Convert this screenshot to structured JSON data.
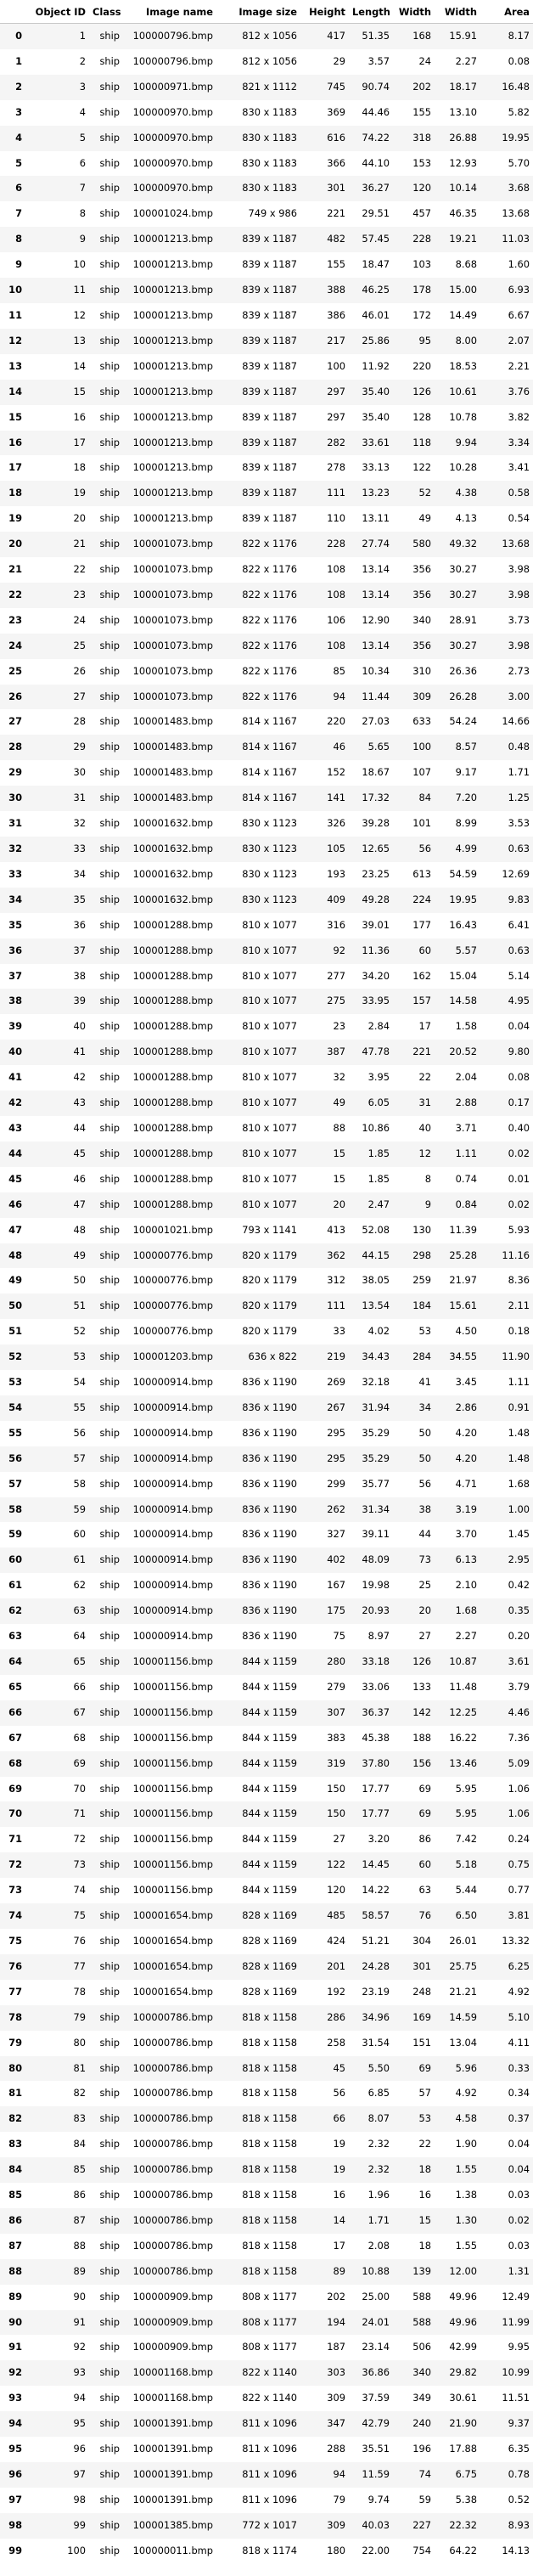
{
  "columns": [
    "",
    "Object ID",
    "Class",
    "Image name",
    "Image size",
    "Height",
    "Length",
    "Width",
    "Width",
    "Area"
  ],
  "rows": [
    [
      "0",
      "1",
      "ship",
      "100000796.bmp",
      "812 x 1056",
      "417",
      "51.35",
      "168",
      "15.91",
      "8.17"
    ],
    [
      "1",
      "2",
      "ship",
      "100000796.bmp",
      "812 x 1056",
      "29",
      "3.57",
      "24",
      "2.27",
      "0.08"
    ],
    [
      "2",
      "3",
      "ship",
      "100000971.bmp",
      "821 x 1112",
      "745",
      "90.74",
      "202",
      "18.17",
      "16.48"
    ],
    [
      "3",
      "4",
      "ship",
      "100000970.bmp",
      "830 x 1183",
      "369",
      "44.46",
      "155",
      "13.10",
      "5.82"
    ],
    [
      "4",
      "5",
      "ship",
      "100000970.bmp",
      "830 x 1183",
      "616",
      "74.22",
      "318",
      "26.88",
      "19.95"
    ],
    [
      "5",
      "6",
      "ship",
      "100000970.bmp",
      "830 x 1183",
      "366",
      "44.10",
      "153",
      "12.93",
      "5.70"
    ],
    [
      "6",
      "7",
      "ship",
      "100000970.bmp",
      "830 x 1183",
      "301",
      "36.27",
      "120",
      "10.14",
      "3.68"
    ],
    [
      "7",
      "8",
      "ship",
      "100001024.bmp",
      "749 x 986",
      "221",
      "29.51",
      "457",
      "46.35",
      "13.68"
    ],
    [
      "8",
      "9",
      "ship",
      "100001213.bmp",
      "839 x 1187",
      "482",
      "57.45",
      "228",
      "19.21",
      "11.03"
    ],
    [
      "9",
      "10",
      "ship",
      "100001213.bmp",
      "839 x 1187",
      "155",
      "18.47",
      "103",
      "8.68",
      "1.60"
    ],
    [
      "10",
      "11",
      "ship",
      "100001213.bmp",
      "839 x 1187",
      "388",
      "46.25",
      "178",
      "15.00",
      "6.93"
    ],
    [
      "11",
      "12",
      "ship",
      "100001213.bmp",
      "839 x 1187",
      "386",
      "46.01",
      "172",
      "14.49",
      "6.67"
    ],
    [
      "12",
      "13",
      "ship",
      "100001213.bmp",
      "839 x 1187",
      "217",
      "25.86",
      "95",
      "8.00",
      "2.07"
    ],
    [
      "13",
      "14",
      "ship",
      "100001213.bmp",
      "839 x 1187",
      "100",
      "11.92",
      "220",
      "18.53",
      "2.21"
    ],
    [
      "14",
      "15",
      "ship",
      "100001213.bmp",
      "839 x 1187",
      "297",
      "35.40",
      "126",
      "10.61",
      "3.76"
    ],
    [
      "15",
      "16",
      "ship",
      "100001213.bmp",
      "839 x 1187",
      "297",
      "35.40",
      "128",
      "10.78",
      "3.82"
    ],
    [
      "16",
      "17",
      "ship",
      "100001213.bmp",
      "839 x 1187",
      "282",
      "33.61",
      "118",
      "9.94",
      "3.34"
    ],
    [
      "17",
      "18",
      "ship",
      "100001213.bmp",
      "839 x 1187",
      "278",
      "33.13",
      "122",
      "10.28",
      "3.41"
    ],
    [
      "18",
      "19",
      "ship",
      "100001213.bmp",
      "839 x 1187",
      "111",
      "13.23",
      "52",
      "4.38",
      "0.58"
    ],
    [
      "19",
      "20",
      "ship",
      "100001213.bmp",
      "839 x 1187",
      "110",
      "13.11",
      "49",
      "4.13",
      "0.54"
    ],
    [
      "20",
      "21",
      "ship",
      "100001073.bmp",
      "822 x 1176",
      "228",
      "27.74",
      "580",
      "49.32",
      "13.68"
    ],
    [
      "21",
      "22",
      "ship",
      "100001073.bmp",
      "822 x 1176",
      "108",
      "13.14",
      "356",
      "30.27",
      "3.98"
    ],
    [
      "22",
      "23",
      "ship",
      "100001073.bmp",
      "822 x 1176",
      "108",
      "13.14",
      "356",
      "30.27",
      "3.98"
    ],
    [
      "23",
      "24",
      "ship",
      "100001073.bmp",
      "822 x 1176",
      "106",
      "12.90",
      "340",
      "28.91",
      "3.73"
    ],
    [
      "24",
      "25",
      "ship",
      "100001073.bmp",
      "822 x 1176",
      "108",
      "13.14",
      "356",
      "30.27",
      "3.98"
    ],
    [
      "25",
      "26",
      "ship",
      "100001073.bmp",
      "822 x 1176",
      "85",
      "10.34",
      "310",
      "26.36",
      "2.73"
    ],
    [
      "26",
      "27",
      "ship",
      "100001073.bmp",
      "822 x 1176",
      "94",
      "11.44",
      "309",
      "26.28",
      "3.00"
    ],
    [
      "27",
      "28",
      "ship",
      "100001483.bmp",
      "814 x 1167",
      "220",
      "27.03",
      "633",
      "54.24",
      "14.66"
    ],
    [
      "28",
      "29",
      "ship",
      "100001483.bmp",
      "814 x 1167",
      "46",
      "5.65",
      "100",
      "8.57",
      "0.48"
    ],
    [
      "29",
      "30",
      "ship",
      "100001483.bmp",
      "814 x 1167",
      "152",
      "18.67",
      "107",
      "9.17",
      "1.71"
    ],
    [
      "30",
      "31",
      "ship",
      "100001483.bmp",
      "814 x 1167",
      "141",
      "17.32",
      "84",
      "7.20",
      "1.25"
    ],
    [
      "31",
      "32",
      "ship",
      "100001632.bmp",
      "830 x 1123",
      "326",
      "39.28",
      "101",
      "8.99",
      "3.53"
    ],
    [
      "32",
      "33",
      "ship",
      "100001632.bmp",
      "830 x 1123",
      "105",
      "12.65",
      "56",
      "4.99",
      "0.63"
    ],
    [
      "33",
      "34",
      "ship",
      "100001632.bmp",
      "830 x 1123",
      "193",
      "23.25",
      "613",
      "54.59",
      "12.69"
    ],
    [
      "34",
      "35",
      "ship",
      "100001632.bmp",
      "830 x 1123",
      "409",
      "49.28",
      "224",
      "19.95",
      "9.83"
    ],
    [
      "35",
      "36",
      "ship",
      "100001288.bmp",
      "810 x 1077",
      "316",
      "39.01",
      "177",
      "16.43",
      "6.41"
    ],
    [
      "36",
      "37",
      "ship",
      "100001288.bmp",
      "810 x 1077",
      "92",
      "11.36",
      "60",
      "5.57",
      "0.63"
    ],
    [
      "37",
      "38",
      "ship",
      "100001288.bmp",
      "810 x 1077",
      "277",
      "34.20",
      "162",
      "15.04",
      "5.14"
    ],
    [
      "38",
      "39",
      "ship",
      "100001288.bmp",
      "810 x 1077",
      "275",
      "33.95",
      "157",
      "14.58",
      "4.95"
    ],
    [
      "39",
      "40",
      "ship",
      "100001288.bmp",
      "810 x 1077",
      "23",
      "2.84",
      "17",
      "1.58",
      "0.04"
    ],
    [
      "40",
      "41",
      "ship",
      "100001288.bmp",
      "810 x 1077",
      "387",
      "47.78",
      "221",
      "20.52",
      "9.80"
    ],
    [
      "41",
      "42",
      "ship",
      "100001288.bmp",
      "810 x 1077",
      "32",
      "3.95",
      "22",
      "2.04",
      "0.08"
    ],
    [
      "42",
      "43",
      "ship",
      "100001288.bmp",
      "810 x 1077",
      "49",
      "6.05",
      "31",
      "2.88",
      "0.17"
    ],
    [
      "43",
      "44",
      "ship",
      "100001288.bmp",
      "810 x 1077",
      "88",
      "10.86",
      "40",
      "3.71",
      "0.40"
    ],
    [
      "44",
      "45",
      "ship",
      "100001288.bmp",
      "810 x 1077",
      "15",
      "1.85",
      "12",
      "1.11",
      "0.02"
    ],
    [
      "45",
      "46",
      "ship",
      "100001288.bmp",
      "810 x 1077",
      "15",
      "1.85",
      "8",
      "0.74",
      "0.01"
    ],
    [
      "46",
      "47",
      "ship",
      "100001288.bmp",
      "810 x 1077",
      "20",
      "2.47",
      "9",
      "0.84",
      "0.02"
    ],
    [
      "47",
      "48",
      "ship",
      "100001021.bmp",
      "793 x 1141",
      "413",
      "52.08",
      "130",
      "11.39",
      "5.93"
    ],
    [
      "48",
      "49",
      "ship",
      "100000776.bmp",
      "820 x 1179",
      "362",
      "44.15",
      "298",
      "25.28",
      "11.16"
    ],
    [
      "49",
      "50",
      "ship",
      "100000776.bmp",
      "820 x 1179",
      "312",
      "38.05",
      "259",
      "21.97",
      "8.36"
    ],
    [
      "50",
      "51",
      "ship",
      "100000776.bmp",
      "820 x 1179",
      "111",
      "13.54",
      "184",
      "15.61",
      "2.11"
    ],
    [
      "51",
      "52",
      "ship",
      "100000776.bmp",
      "820 x 1179",
      "33",
      "4.02",
      "53",
      "4.50",
      "0.18"
    ],
    [
      "52",
      "53",
      "ship",
      "100001203.bmp",
      "636 x 822",
      "219",
      "34.43",
      "284",
      "34.55",
      "11.90"
    ],
    [
      "53",
      "54",
      "ship",
      "100000914.bmp",
      "836 x 1190",
      "269",
      "32.18",
      "41",
      "3.45",
      "1.11"
    ],
    [
      "54",
      "55",
      "ship",
      "100000914.bmp",
      "836 x 1190",
      "267",
      "31.94",
      "34",
      "2.86",
      "0.91"
    ],
    [
      "55",
      "56",
      "ship",
      "100000914.bmp",
      "836 x 1190",
      "295",
      "35.29",
      "50",
      "4.20",
      "1.48"
    ],
    [
      "56",
      "57",
      "ship",
      "100000914.bmp",
      "836 x 1190",
      "295",
      "35.29",
      "50",
      "4.20",
      "1.48"
    ],
    [
      "57",
      "58",
      "ship",
      "100000914.bmp",
      "836 x 1190",
      "299",
      "35.77",
      "56",
      "4.71",
      "1.68"
    ],
    [
      "58",
      "59",
      "ship",
      "100000914.bmp",
      "836 x 1190",
      "262",
      "31.34",
      "38",
      "3.19",
      "1.00"
    ],
    [
      "59",
      "60",
      "ship",
      "100000914.bmp",
      "836 x 1190",
      "327",
      "39.11",
      "44",
      "3.70",
      "1.45"
    ],
    [
      "60",
      "61",
      "ship",
      "100000914.bmp",
      "836 x 1190",
      "402",
      "48.09",
      "73",
      "6.13",
      "2.95"
    ],
    [
      "61",
      "62",
      "ship",
      "100000914.bmp",
      "836 x 1190",
      "167",
      "19.98",
      "25",
      "2.10",
      "0.42"
    ],
    [
      "62",
      "63",
      "ship",
      "100000914.bmp",
      "836 x 1190",
      "175",
      "20.93",
      "20",
      "1.68",
      "0.35"
    ],
    [
      "63",
      "64",
      "ship",
      "100000914.bmp",
      "836 x 1190",
      "75",
      "8.97",
      "27",
      "2.27",
      "0.20"
    ],
    [
      "64",
      "65",
      "ship",
      "100001156.bmp",
      "844 x 1159",
      "280",
      "33.18",
      "126",
      "10.87",
      "3.61"
    ],
    [
      "65",
      "66",
      "ship",
      "100001156.bmp",
      "844 x 1159",
      "279",
      "33.06",
      "133",
      "11.48",
      "3.79"
    ],
    [
      "66",
      "67",
      "ship",
      "100001156.bmp",
      "844 x 1159",
      "307",
      "36.37",
      "142",
      "12.25",
      "4.46"
    ],
    [
      "67",
      "68",
      "ship",
      "100001156.bmp",
      "844 x 1159",
      "383",
      "45.38",
      "188",
      "16.22",
      "7.36"
    ],
    [
      "68",
      "69",
      "ship",
      "100001156.bmp",
      "844 x 1159",
      "319",
      "37.80",
      "156",
      "13.46",
      "5.09"
    ],
    [
      "69",
      "70",
      "ship",
      "100001156.bmp",
      "844 x 1159",
      "150",
      "17.77",
      "69",
      "5.95",
      "1.06"
    ],
    [
      "70",
      "71",
      "ship",
      "100001156.bmp",
      "844 x 1159",
      "150",
      "17.77",
      "69",
      "5.95",
      "1.06"
    ],
    [
      "71",
      "72",
      "ship",
      "100001156.bmp",
      "844 x 1159",
      "27",
      "3.20",
      "86",
      "7.42",
      "0.24"
    ],
    [
      "72",
      "73",
      "ship",
      "100001156.bmp",
      "844 x 1159",
      "122",
      "14.45",
      "60",
      "5.18",
      "0.75"
    ],
    [
      "73",
      "74",
      "ship",
      "100001156.bmp",
      "844 x 1159",
      "120",
      "14.22",
      "63",
      "5.44",
      "0.77"
    ],
    [
      "74",
      "75",
      "ship",
      "100001654.bmp",
      "828 x 1169",
      "485",
      "58.57",
      "76",
      "6.50",
      "3.81"
    ],
    [
      "75",
      "76",
      "ship",
      "100001654.bmp",
      "828 x 1169",
      "424",
      "51.21",
      "304",
      "26.01",
      "13.32"
    ],
    [
      "76",
      "77",
      "ship",
      "100001654.bmp",
      "828 x 1169",
      "201",
      "24.28",
      "301",
      "25.75",
      "6.25"
    ],
    [
      "77",
      "78",
      "ship",
      "100001654.bmp",
      "828 x 1169",
      "192",
      "23.19",
      "248",
      "21.21",
      "4.92"
    ],
    [
      "78",
      "79",
      "ship",
      "100000786.bmp",
      "818 x 1158",
      "286",
      "34.96",
      "169",
      "14.59",
      "5.10"
    ],
    [
      "79",
      "80",
      "ship",
      "100000786.bmp",
      "818 x 1158",
      "258",
      "31.54",
      "151",
      "13.04",
      "4.11"
    ],
    [
      "80",
      "81",
      "ship",
      "100000786.bmp",
      "818 x 1158",
      "45",
      "5.50",
      "69",
      "5.96",
      "0.33"
    ],
    [
      "81",
      "82",
      "ship",
      "100000786.bmp",
      "818 x 1158",
      "56",
      "6.85",
      "57",
      "4.92",
      "0.34"
    ],
    [
      "82",
      "83",
      "ship",
      "100000786.bmp",
      "818 x 1158",
      "66",
      "8.07",
      "53",
      "4.58",
      "0.37"
    ],
    [
      "83",
      "84",
      "ship",
      "100000786.bmp",
      "818 x 1158",
      "19",
      "2.32",
      "22",
      "1.90",
      "0.04"
    ],
    [
      "84",
      "85",
      "ship",
      "100000786.bmp",
      "818 x 1158",
      "19",
      "2.32",
      "18",
      "1.55",
      "0.04"
    ],
    [
      "85",
      "86",
      "ship",
      "100000786.bmp",
      "818 x 1158",
      "16",
      "1.96",
      "16",
      "1.38",
      "0.03"
    ],
    [
      "86",
      "87",
      "ship",
      "100000786.bmp",
      "818 x 1158",
      "14",
      "1.71",
      "15",
      "1.30",
      "0.02"
    ],
    [
      "87",
      "88",
      "ship",
      "100000786.bmp",
      "818 x 1158",
      "17",
      "2.08",
      "18",
      "1.55",
      "0.03"
    ],
    [
      "88",
      "89",
      "ship",
      "100000786.bmp",
      "818 x 1158",
      "89",
      "10.88",
      "139",
      "12.00",
      "1.31"
    ],
    [
      "89",
      "90",
      "ship",
      "100000909.bmp",
      "808 x 1177",
      "202",
      "25.00",
      "588",
      "49.96",
      "12.49"
    ],
    [
      "90",
      "91",
      "ship",
      "100000909.bmp",
      "808 x 1177",
      "194",
      "24.01",
      "588",
      "49.96",
      "11.99"
    ],
    [
      "91",
      "92",
      "ship",
      "100000909.bmp",
      "808 x 1177",
      "187",
      "23.14",
      "506",
      "42.99",
      "9.95"
    ],
    [
      "92",
      "93",
      "ship",
      "100001168.bmp",
      "822 x 1140",
      "303",
      "36.86",
      "340",
      "29.82",
      "10.99"
    ],
    [
      "93",
      "94",
      "ship",
      "100001168.bmp",
      "822 x 1140",
      "309",
      "37.59",
      "349",
      "30.61",
      "11.51"
    ],
    [
      "94",
      "95",
      "ship",
      "100001391.bmp",
      "811 x 1096",
      "347",
      "42.79",
      "240",
      "21.90",
      "9.37"
    ],
    [
      "95",
      "96",
      "ship",
      "100001391.bmp",
      "811 x 1096",
      "288",
      "35.51",
      "196",
      "17.88",
      "6.35"
    ],
    [
      "96",
      "97",
      "ship",
      "100001391.bmp",
      "811 x 1096",
      "94",
      "11.59",
      "74",
      "6.75",
      "0.78"
    ],
    [
      "97",
      "98",
      "ship",
      "100001391.bmp",
      "811 x 1096",
      "79",
      "9.74",
      "59",
      "5.38",
      "0.52"
    ],
    [
      "98",
      "99",
      "ship",
      "100001385.bmp",
      "772 x 1017",
      "309",
      "40.03",
      "227",
      "22.32",
      "8.93"
    ],
    [
      "99",
      "100",
      "ship",
      "100000011.bmp",
      "818 x 1174",
      "180",
      "22.00",
      "754",
      "64.22",
      "14.13"
    ]
  ]
}
